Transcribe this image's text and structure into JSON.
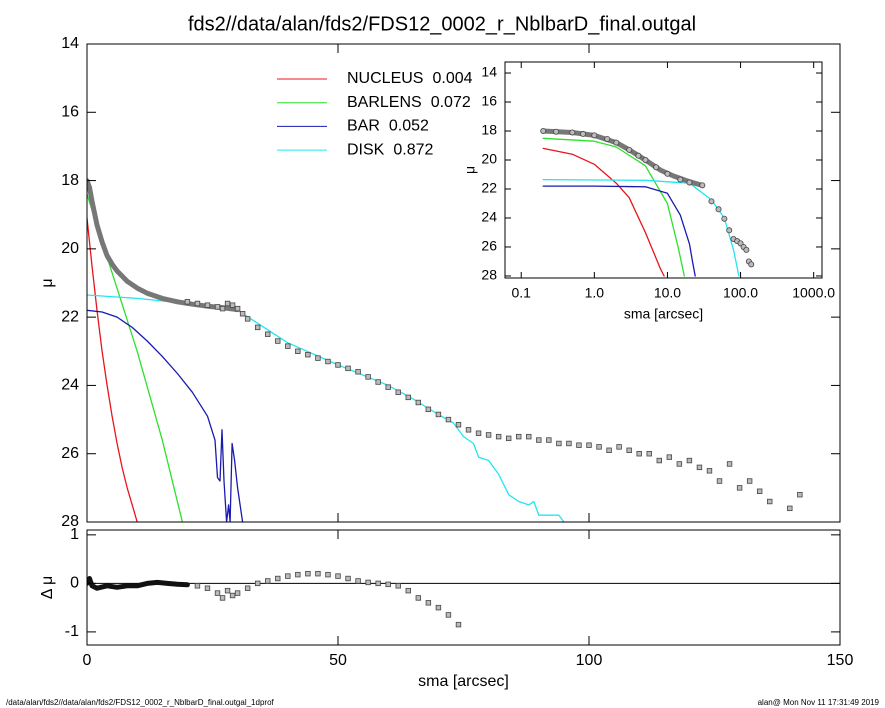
{
  "chart_data": [
    {
      "type": "line",
      "title": "fds2//data/alan/fds2/FDS12_0002_r_NblbarD_final.outgal",
      "ylabel": "μ",
      "xlim": [
        0,
        150
      ],
      "ylim": [
        28,
        14
      ],
      "yticks": [
        14,
        16,
        18,
        20,
        22,
        24,
        26,
        28
      ],
      "series": [
        {
          "name": "NUCLEUS",
          "fraction": 0.004,
          "color": "#e8141c",
          "style": "line",
          "x": [
            0,
            1,
            2,
            3,
            4,
            5,
            6,
            7,
            8,
            9,
            10
          ],
          "values": [
            19.1,
            20.5,
            21.8,
            23.0,
            24.0,
            24.9,
            25.7,
            26.4,
            27.0,
            27.5,
            28.0
          ]
        },
        {
          "name": "BARLENS",
          "fraction": 0.072,
          "color": "#2ee02e",
          "style": "line",
          "x": [
            0,
            5,
            10,
            15,
            19
          ],
          "values": [
            18.4,
            20.7,
            23.0,
            25.6,
            28.0
          ]
        },
        {
          "name": "BAR",
          "fraction": 0.052,
          "color": "#1a1ab0",
          "style": "line",
          "x": [
            0,
            3,
            6,
            9,
            12,
            15,
            18,
            21,
            24,
            25.5,
            26,
            26.5,
            26.9,
            27.3,
            27.8,
            28.2,
            28.5,
            28.9,
            29.4,
            30,
            31
          ],
          "values": [
            21.8,
            21.85,
            22.0,
            22.3,
            22.7,
            23.15,
            23.65,
            24.2,
            24.9,
            25.6,
            26.7,
            26.8,
            25.3,
            26.8,
            28.0,
            27.5,
            28.0,
            25.7,
            26.2,
            27.0,
            28.0
          ]
        },
        {
          "name": "DISK",
          "fraction": 0.872,
          "color": "#22e6f0",
          "style": "line",
          "x": [
            0,
            10,
            20,
            30,
            40,
            50,
            60,
            65,
            70,
            73,
            75,
            77,
            78,
            80,
            82,
            84,
            86,
            88,
            89,
            90,
            94,
            95
          ],
          "values": [
            21.35,
            21.45,
            21.6,
            21.8,
            22.75,
            23.4,
            24.0,
            24.4,
            24.85,
            25.1,
            25.5,
            25.7,
            26.1,
            26.2,
            26.6,
            27.2,
            27.4,
            27.5,
            27.4,
            27.8,
            27.8,
            28.0
          ]
        },
        {
          "color": "#777777",
          "style": "thick",
          "x": [
            0,
            0.5,
            1,
            2,
            3,
            4,
            5,
            6,
            8,
            10,
            12,
            15,
            18,
            21,
            24,
            27,
            30
          ],
          "values": [
            18.0,
            18.2,
            18.6,
            19.3,
            19.8,
            20.2,
            20.45,
            20.65,
            20.95,
            21.15,
            21.3,
            21.45,
            21.55,
            21.62,
            21.68,
            21.72,
            21.78
          ]
        },
        {
          "color": "#444444",
          "style": "squares",
          "x": [
            20,
            22,
            24,
            26,
            27,
            28,
            29,
            30,
            31,
            32,
            34,
            36,
            38,
            40,
            42,
            44,
            46,
            48,
            50,
            52,
            54,
            56,
            58,
            60,
            62,
            64,
            66,
            68,
            70,
            72,
            74,
            76,
            78,
            80,
            82,
            84,
            86,
            88,
            90,
            92,
            94,
            96,
            98,
            100,
            102,
            104,
            106,
            108,
            110,
            112,
            114,
            116,
            118,
            120,
            122,
            124,
            126,
            128,
            130,
            132,
            134,
            136,
            140,
            142
          ],
          "values": [
            21.55,
            21.6,
            21.65,
            21.7,
            21.75,
            21.6,
            21.65,
            21.75,
            21.9,
            22.05,
            22.3,
            22.5,
            22.7,
            22.85,
            23.0,
            23.1,
            23.2,
            23.3,
            23.4,
            23.5,
            23.6,
            23.75,
            23.9,
            24.05,
            24.2,
            24.35,
            24.5,
            24.7,
            24.85,
            25.0,
            25.15,
            25.3,
            25.4,
            25.45,
            25.5,
            25.55,
            25.5,
            25.5,
            25.6,
            25.6,
            25.7,
            25.7,
            25.75,
            25.75,
            25.8,
            25.9,
            25.8,
            25.9,
            26.0,
            26.0,
            26.2,
            26.1,
            26.3,
            26.2,
            26.4,
            26.5,
            26.8,
            26.3,
            27.0,
            26.8,
            27.1,
            27.4,
            27.6,
            27.2
          ]
        }
      ]
    },
    {
      "type": "scatter",
      "xlabel": "sma [arcsec]",
      "ylabel": "Δ μ",
      "xlim": [
        0,
        150
      ],
      "xticks": [
        0,
        50,
        100,
        150
      ],
      "ylim": [
        -1.27,
        1.1
      ],
      "yticks": [
        -1,
        0,
        1
      ],
      "hline": 0,
      "series": [
        {
          "color": "#111111",
          "style": "thick",
          "x": [
            0,
            0.5,
            1,
            2,
            4,
            6,
            8,
            10,
            12,
            14,
            16,
            18,
            20
          ],
          "values": [
            0,
            0.1,
            -0.05,
            -0.1,
            -0.05,
            -0.08,
            -0.05,
            -0.05,
            0.0,
            0.02,
            0.0,
            -0.02,
            -0.03
          ]
        },
        {
          "color": "#444444",
          "style": "squares",
          "x": [
            22,
            24,
            26,
            27,
            28,
            29,
            30,
            32,
            34,
            36,
            38,
            40,
            42,
            44,
            46,
            48,
            50,
            52,
            54,
            56,
            58,
            60,
            62,
            64,
            66,
            68,
            70,
            72,
            74
          ],
          "values": [
            -0.05,
            -0.1,
            -0.2,
            -0.3,
            -0.15,
            -0.25,
            -0.2,
            -0.1,
            0.0,
            0.05,
            0.1,
            0.15,
            0.18,
            0.2,
            0.2,
            0.18,
            0.15,
            0.1,
            0.05,
            0.02,
            0.0,
            -0.02,
            -0.05,
            -0.15,
            -0.3,
            -0.4,
            -0.5,
            -0.65,
            -0.85
          ]
        }
      ]
    },
    {
      "type": "line",
      "xscale": "log",
      "xlabel": "sma [arcsec]",
      "ylabel": "μ",
      "xlim": [
        0.06,
        1300
      ],
      "xticks": [
        0.1,
        {
          "value": 1,
          "label": "1.0"
        },
        {
          "value": 10,
          "label": "10.0"
        },
        {
          "value": 100,
          "label": "100.0"
        },
        {
          "value": 1000,
          "label": "1000.0"
        }
      ],
      "ylim": [
        28.14,
        13.24
      ],
      "yticks": [
        14,
        16,
        18,
        20,
        22,
        24,
        26,
        28
      ],
      "series": [
        {
          "color": "#e8141c",
          "style": "line",
          "x": [
            0.2,
            0.5,
            1,
            2,
            3,
            5,
            8,
            9
          ],
          "values": [
            19.2,
            19.6,
            20.3,
            21.6,
            22.6,
            25.0,
            27.5,
            28.0
          ]
        },
        {
          "color": "#2ee02e",
          "style": "line",
          "x": [
            0.2,
            1,
            2,
            5,
            10,
            14,
            17
          ],
          "values": [
            18.5,
            18.7,
            19.1,
            20.4,
            23.0,
            26.0,
            28.0
          ]
        },
        {
          "color": "#1a1ab0",
          "style": "line",
          "x": [
            0.2,
            1,
            5,
            10,
            15,
            20,
            22,
            24
          ],
          "values": [
            21.8,
            21.8,
            21.85,
            22.3,
            23.8,
            25.8,
            27.0,
            28.0
          ]
        },
        {
          "color": "#22e6f0",
          "style": "line",
          "x": [
            0.2,
            5,
            20,
            40,
            60,
            80,
            95
          ],
          "values": [
            21.35,
            21.4,
            21.6,
            22.75,
            24.0,
            26.2,
            28.0
          ]
        },
        {
          "color": "#777777",
          "style": "thick",
          "x": [
            0.2,
            0.5,
            1,
            2,
            3,
            5,
            8,
            12,
            20,
            30
          ],
          "values": [
            18.0,
            18.1,
            18.3,
            18.8,
            19.3,
            20.0,
            20.7,
            21.1,
            21.5,
            21.75
          ]
        },
        {
          "color": "#444444",
          "style": "circles",
          "x": [
            0.2,
            0.3,
            0.5,
            0.7,
            1,
            1.5,
            2,
            3,
            4,
            5,
            7,
            10,
            15,
            20,
            30,
            40,
            50,
            60,
            70,
            80,
            90,
            100,
            110,
            120,
            130,
            140
          ],
          "values": [
            18.0,
            18.05,
            18.1,
            18.2,
            18.3,
            18.55,
            18.8,
            19.3,
            19.7,
            20.0,
            20.5,
            20.95,
            21.35,
            21.55,
            21.75,
            22.85,
            23.4,
            24.05,
            24.85,
            25.45,
            25.6,
            25.75,
            26.0,
            26.2,
            27.0,
            27.2
          ]
        }
      ]
    }
  ],
  "footer": {
    "left": "/data/alan/fds2//data/alan/fds2/FDS12_0002_r_NblbarD_final.outgal_1dprof",
    "right": "alan@  Mon Nov 11 17:31:49 2019"
  }
}
